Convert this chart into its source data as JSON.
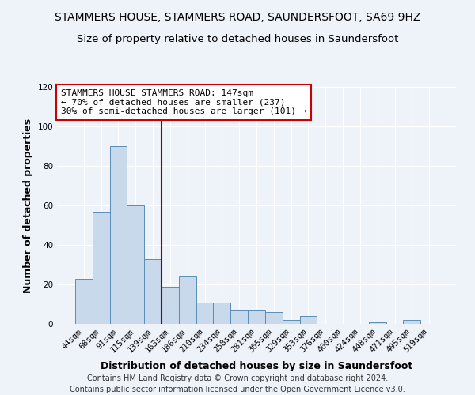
{
  "title": "STAMMERS HOUSE, STAMMERS ROAD, SAUNDERSFOOT, SA69 9HZ",
  "subtitle": "Size of property relative to detached houses in Saundersfoot",
  "xlabel": "Distribution of detached houses by size in Saundersfoot",
  "ylabel": "Number of detached properties",
  "footer_lines": [
    "Contains HM Land Registry data © Crown copyright and database right 2024.",
    "Contains public sector information licensed under the Open Government Licence v3.0."
  ],
  "categories": [
    "44sqm",
    "68sqm",
    "91sqm",
    "115sqm",
    "139sqm",
    "163sqm",
    "186sqm",
    "210sqm",
    "234sqm",
    "258sqm",
    "281sqm",
    "305sqm",
    "329sqm",
    "353sqm",
    "376sqm",
    "400sqm",
    "424sqm",
    "448sqm",
    "471sqm",
    "495sqm",
    "519sqm"
  ],
  "values": [
    23,
    57,
    90,
    60,
    33,
    19,
    24,
    11,
    11,
    7,
    7,
    6,
    2,
    4,
    0,
    0,
    0,
    1,
    0,
    2,
    0
  ],
  "bar_color": "#c9d9ec",
  "bar_edge_color": "#5a8db5",
  "vline_color": "#8b0000",
  "annotation_text": "STAMMERS HOUSE STAMMERS ROAD: 147sqm\n← 70% of detached houses are smaller (237)\n30% of semi-detached houses are larger (101) →",
  "annotation_box_color": "#ffffff",
  "annotation_box_edge_color": "#cc0000",
  "ylim": [
    0,
    120
  ],
  "yticks": [
    0,
    20,
    40,
    60,
    80,
    100,
    120
  ],
  "background_color": "#eef2f9",
  "grid_color": "#ffffff",
  "title_fontsize": 10,
  "subtitle_fontsize": 9.5,
  "axis_label_fontsize": 9,
  "tick_fontsize": 7.5,
  "footer_fontsize": 7,
  "annotation_fontsize": 8
}
